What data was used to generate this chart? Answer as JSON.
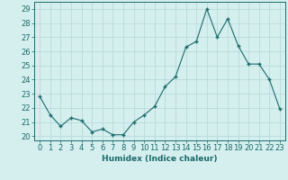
{
  "x": [
    0,
    1,
    2,
    3,
    4,
    5,
    6,
    7,
    8,
    9,
    10,
    11,
    12,
    13,
    14,
    15,
    16,
    17,
    18,
    19,
    20,
    21,
    22,
    23
  ],
  "y": [
    22.8,
    21.5,
    20.7,
    21.3,
    21.1,
    20.3,
    20.5,
    20.1,
    20.1,
    21.0,
    21.5,
    22.1,
    23.5,
    24.2,
    26.3,
    26.7,
    29.0,
    27.0,
    28.3,
    26.4,
    25.1,
    25.1,
    24.0,
    21.9
  ],
  "line_color": "#1a6b6b",
  "marker": "+",
  "marker_size": 3.5,
  "bg_color": "#d5eeee",
  "grid_color": "#b0d8d8",
  "xlabel": "Humidex (Indice chaleur)",
  "ylabel_ticks": [
    20,
    21,
    22,
    23,
    24,
    25,
    26,
    27,
    28,
    29
  ],
  "ylim": [
    19.7,
    29.5
  ],
  "xlim": [
    -0.5,
    23.5
  ],
  "xlabel_fontsize": 6.5,
  "tick_fontsize": 6.0,
  "tick_color": "#1a6b6b"
}
